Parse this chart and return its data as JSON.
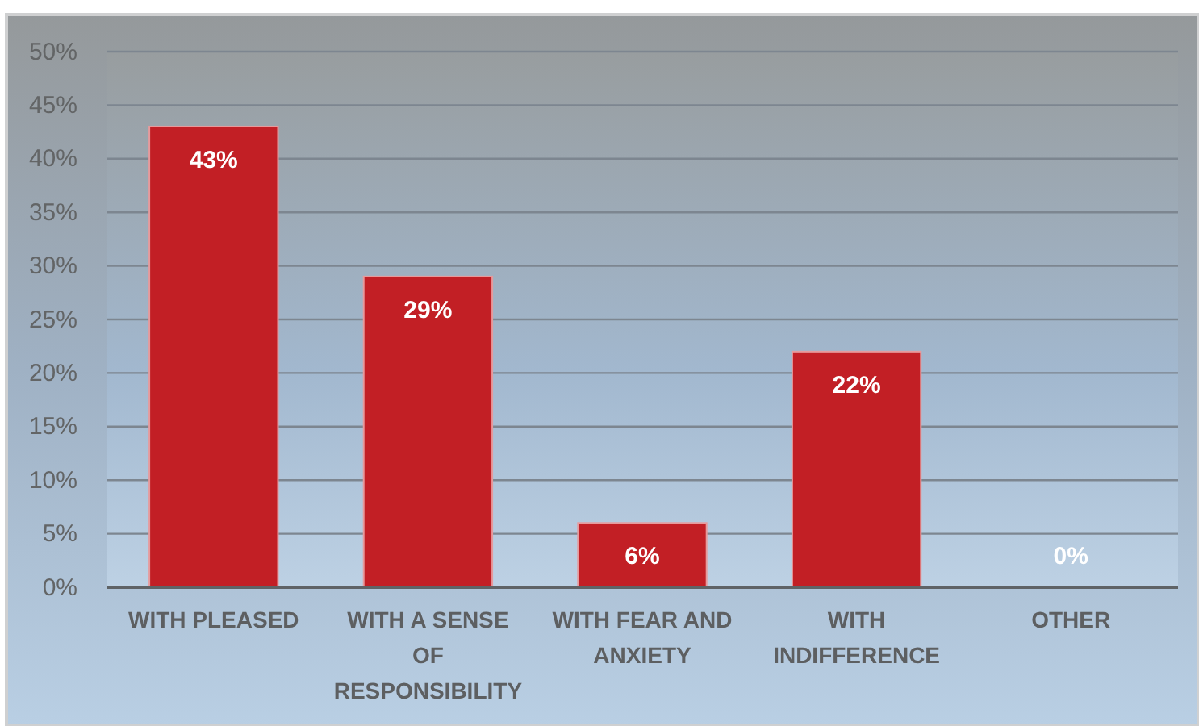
{
  "chart_data": {
    "type": "bar",
    "categories": [
      "WITH PLEASED",
      "WITH A SENSE OF RESPONSIBILITY",
      "WITH FEAR AND ANXIETY",
      "WITH INDIFFERENCE",
      "OTHER"
    ],
    "values": [
      43,
      29,
      6,
      22,
      0
    ],
    "value_labels": [
      "43%",
      "29%",
      "6%",
      "22%",
      "0%"
    ],
    "color": "#c21f25",
    "ylim": [
      0,
      50
    ],
    "yticks": [
      {
        "value": 0,
        "label": "0%"
      },
      {
        "value": 5,
        "label": "5%"
      },
      {
        "value": 10,
        "label": "10%"
      },
      {
        "value": 15,
        "label": "15%"
      },
      {
        "value": 20,
        "label": "20%"
      },
      {
        "value": 25,
        "label": "25%"
      },
      {
        "value": 30,
        "label": "30%"
      },
      {
        "value": 35,
        "label": "35%"
      },
      {
        "value": 40,
        "label": "40%"
      },
      {
        "value": 45,
        "label": "45%"
      },
      {
        "value": 50,
        "label": "50%"
      }
    ],
    "grid": "y"
  }
}
